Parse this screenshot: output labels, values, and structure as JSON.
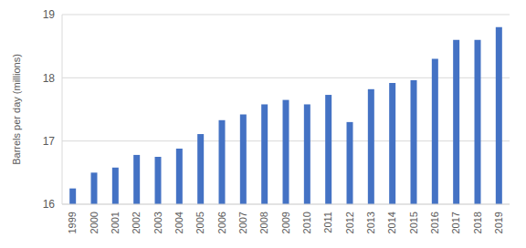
{
  "chart_data": {
    "type": "bar",
    "y_label": "Barrels per day (millions)",
    "categories": [
      "1999",
      "2000",
      "2001",
      "2002",
      "2003",
      "2004",
      "2005",
      "2006",
      "2007",
      "2008",
      "2009",
      "2010",
      "2011",
      "2012",
      "2013",
      "2014",
      "2015",
      "2016",
      "2017",
      "2018",
      "2019"
    ],
    "values": [
      16.25,
      16.5,
      16.58,
      16.78,
      16.75,
      16.88,
      17.11,
      17.33,
      17.42,
      17.58,
      17.65,
      17.58,
      17.73,
      17.3,
      17.82,
      17.92,
      17.96,
      18.3,
      18.6,
      18.6,
      18.8
    ],
    "color": "#4472c4",
    "ylim": [
      16,
      19
    ],
    "yticks": [
      16,
      17,
      18,
      19
    ],
    "grid": true
  }
}
